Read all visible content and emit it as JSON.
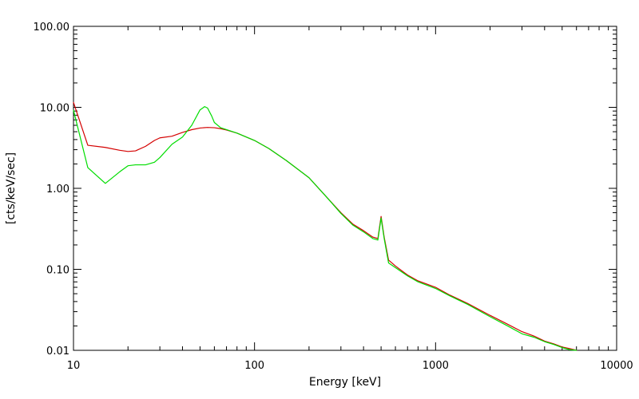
{
  "chart_data": {
    "type": "line",
    "title": "",
    "xlabel": "Energy [keV]",
    "ylabel": "[cts/keV/sec]",
    "xscale": "log",
    "yscale": "log",
    "xlim": [
      10,
      10000
    ],
    "ylim": [
      0.01,
      100
    ],
    "grid": false,
    "legend": "none",
    "xticks": [
      {
        "value": 10,
        "label": "10"
      },
      {
        "value": 100,
        "label": "100"
      },
      {
        "value": 1000,
        "label": "1000"
      },
      {
        "value": 10000,
        "label": "10000"
      }
    ],
    "yticks": [
      {
        "value": 0.01,
        "label": "0.01"
      },
      {
        "value": 0.1,
        "label": "0.10"
      },
      {
        "value": 1,
        "label": "1.00"
      },
      {
        "value": 10,
        "label": "10.00"
      },
      {
        "value": 100,
        "label": "100.00"
      }
    ],
    "series": [
      {
        "color": "#d40000",
        "x": [
          10,
          12,
          15,
          18,
          20,
          22,
          25,
          28,
          30,
          35,
          40,
          45,
          50,
          55,
          60,
          65,
          70,
          80,
          100,
          120,
          150,
          200,
          250,
          300,
          350,
          400,
          450,
          480,
          500,
          520,
          550,
          600,
          700,
          800,
          1000,
          1200,
          1500,
          2000,
          2500,
          3000,
          3500,
          4000,
          4500,
          5000,
          5500,
          6000
        ],
        "y": [
          11.5,
          3.4,
          3.2,
          2.95,
          2.85,
          2.9,
          3.3,
          3.9,
          4.2,
          4.4,
          4.9,
          5.3,
          5.55,
          5.65,
          5.6,
          5.45,
          5.25,
          4.8,
          3.9,
          3.1,
          2.2,
          1.35,
          0.78,
          0.5,
          0.36,
          0.3,
          0.25,
          0.24,
          0.45,
          0.25,
          0.13,
          0.11,
          0.085,
          0.072,
          0.06,
          0.048,
          0.038,
          0.027,
          0.021,
          0.017,
          0.015,
          0.013,
          0.012,
          0.011,
          0.0105,
          0.01
        ]
      },
      {
        "color": "#00dd00",
        "x": [
          10,
          12,
          15,
          18,
          20,
          22,
          25,
          28,
          30,
          35,
          40,
          45,
          50,
          53,
          55,
          58,
          60,
          65,
          70,
          80,
          100,
          120,
          150,
          200,
          250,
          300,
          350,
          400,
          450,
          480,
          500,
          520,
          550,
          600,
          700,
          800,
          1000,
          1200,
          1500,
          2000,
          2500,
          3000,
          3500,
          4000,
          4500,
          5000,
          5500,
          6000
        ],
        "y": [
          9.2,
          1.8,
          1.15,
          1.6,
          1.9,
          1.95,
          1.95,
          2.1,
          2.4,
          3.5,
          4.3,
          6.0,
          9.3,
          10.2,
          9.8,
          7.8,
          6.5,
          5.6,
          5.3,
          4.8,
          3.9,
          3.1,
          2.2,
          1.35,
          0.78,
          0.49,
          0.35,
          0.29,
          0.24,
          0.23,
          0.43,
          0.24,
          0.12,
          0.105,
          0.083,
          0.07,
          0.058,
          0.047,
          0.037,
          0.026,
          0.02,
          0.016,
          0.0145,
          0.0128,
          0.0118,
          0.0108,
          0.0102,
          0.0098
        ]
      }
    ]
  }
}
